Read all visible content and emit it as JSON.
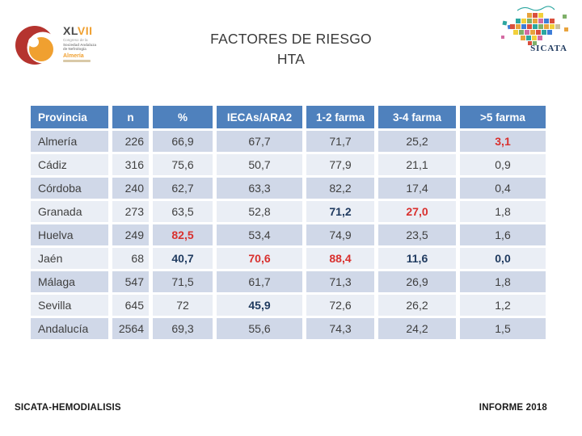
{
  "slide": {
    "title_line1": "FACTORES DE RIESGO",
    "title_line2": "HTA",
    "footer_left": "SICATA-HEMODIALISIS",
    "footer_right": "INFORME 2018"
  },
  "logo_left": {
    "acronym_dark": "XL",
    "acronym_orange": "VII",
    "line1": "Congreso de la",
    "line2": "Sociedad Andaluza",
    "line3": "de Nefrología",
    "city": "Almería"
  },
  "logo_right": {
    "name": "SICATA"
  },
  "table": {
    "columns": [
      "Provincia",
      "n",
      "%",
      "IECAs/ARA2",
      "1-2 farma",
      "3-4 farma",
      ">5 farma"
    ],
    "rows": [
      {
        "provincia": "Almería",
        "values": [
          {
            "t": "226"
          },
          {
            "t": "66,9"
          },
          {
            "t": "67,7"
          },
          {
            "t": "71,7"
          },
          {
            "t": "25,2"
          },
          {
            "t": "3,1",
            "c": "red"
          }
        ]
      },
      {
        "provincia": "Cádiz",
        "values": [
          {
            "t": "316"
          },
          {
            "t": "75,6"
          },
          {
            "t": "50,7"
          },
          {
            "t": "77,9"
          },
          {
            "t": "21,1"
          },
          {
            "t": "0,9"
          }
        ]
      },
      {
        "provincia": "Córdoba",
        "values": [
          {
            "t": "240"
          },
          {
            "t": "62,7"
          },
          {
            "t": "63,3"
          },
          {
            "t": "82,2"
          },
          {
            "t": "17,4"
          },
          {
            "t": "0,4"
          }
        ]
      },
      {
        "provincia": "Granada",
        "values": [
          {
            "t": "273"
          },
          {
            "t": "63,5"
          },
          {
            "t": "52,8"
          },
          {
            "t": "71,2",
            "c": "navy"
          },
          {
            "t": "27,0",
            "c": "red"
          },
          {
            "t": "1,8"
          }
        ]
      },
      {
        "provincia": "Huelva",
        "values": [
          {
            "t": "249"
          },
          {
            "t": "82,5",
            "c": "red"
          },
          {
            "t": "53,4"
          },
          {
            "t": "74,9"
          },
          {
            "t": "23,5"
          },
          {
            "t": "1,6"
          }
        ]
      },
      {
        "provincia": "Jaén",
        "values": [
          {
            "t": "68"
          },
          {
            "t": "40,7",
            "c": "navy"
          },
          {
            "t": "70,6",
            "c": "red"
          },
          {
            "t": "88,4",
            "c": "red"
          },
          {
            "t": "11,6",
            "c": "navy"
          },
          {
            "t": "0,0",
            "c": "navy"
          }
        ]
      },
      {
        "provincia": "Málaga",
        "values": [
          {
            "t": "547"
          },
          {
            "t": "71,5"
          },
          {
            "t": "61,7"
          },
          {
            "t": "71,3"
          },
          {
            "t": "26,9"
          },
          {
            "t": "1,8"
          }
        ]
      },
      {
        "provincia": "Sevilla",
        "values": [
          {
            "t": "645"
          },
          {
            "t": "72"
          },
          {
            "t": "45,9",
            "c": "navy"
          },
          {
            "t": "72,6"
          },
          {
            "t": "26,2"
          },
          {
            "t": "1,2"
          }
        ]
      },
      {
        "provincia": "Andalucía",
        "values": [
          {
            "t": "2564"
          },
          {
            "t": "69,3"
          },
          {
            "t": "55,6"
          },
          {
            "t": "74,3"
          },
          {
            "t": "24,2"
          },
          {
            "t": "1,5"
          }
        ]
      }
    ]
  },
  "colors": {
    "header_bg": "#4f81bd",
    "row_band_dark": "#d0d8e8",
    "row_band_light": "#eaeef5",
    "highlight_red": "#d9302e",
    "highlight_navy": "#1f3a5f",
    "brand_orange": "#f0a030",
    "brand_red": "#b5342f",
    "sicata_teal": "#2ba6a0",
    "sicata_navy": "#1f3a5f"
  }
}
